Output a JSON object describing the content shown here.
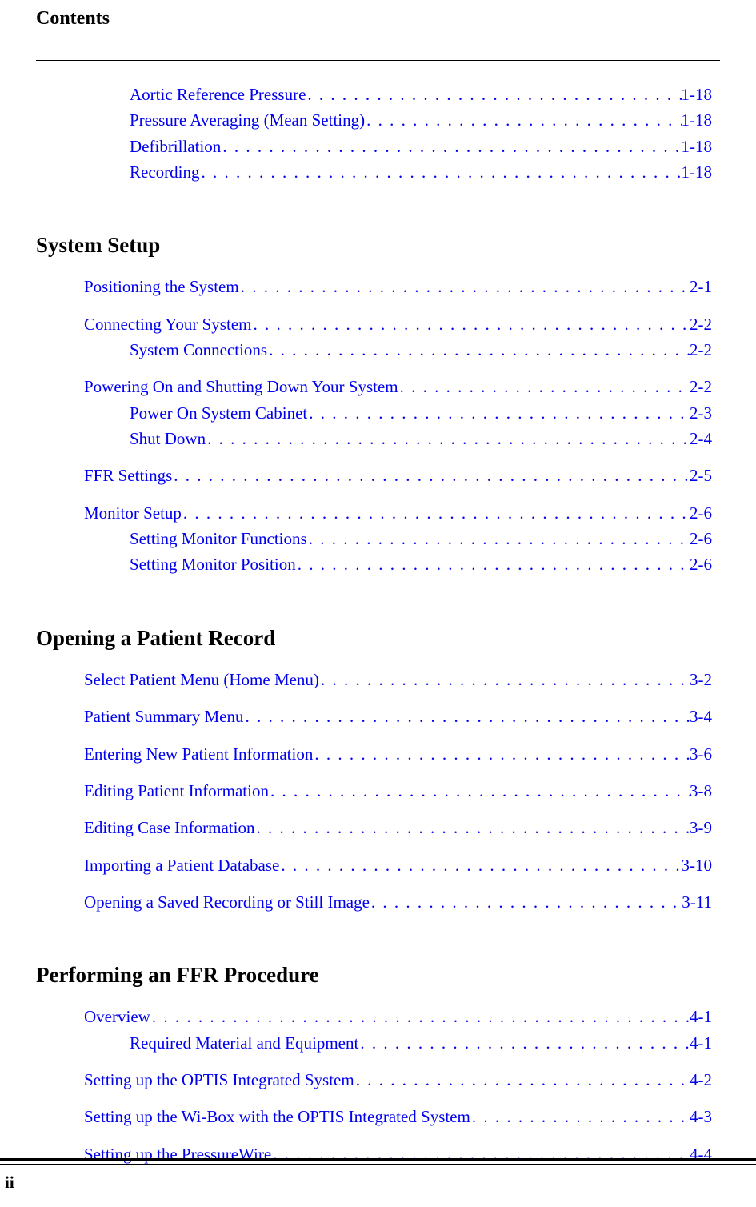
{
  "header": {
    "title": "Contents"
  },
  "colors": {
    "background": "#ffffff",
    "text": "#000000",
    "link": "#0000ee",
    "rule": "#000000"
  },
  "fonts": {
    "family": "Times New Roman",
    "header_size_pt": 18,
    "section_size_pt": 20,
    "entry_size_pt": 16
  },
  "toc": {
    "orphan_entries": [
      {
        "label": "Aortic Reference Pressure",
        "page": "1-18",
        "level": 1
      },
      {
        "label": "Pressure Averaging (Mean Setting)",
        "page": "1-18",
        "level": 1
      },
      {
        "label": "Defibrillation",
        "page": "1-18",
        "level": 1
      },
      {
        "label": "Recording",
        "page": "1-18",
        "level": 1
      }
    ],
    "sections": [
      {
        "heading": "System Setup",
        "groups": [
          [
            {
              "label": "Positioning the System",
              "page": "2-1",
              "level": 0
            }
          ],
          [
            {
              "label": "Connecting Your System",
              "page": "2-2",
              "level": 0
            },
            {
              "label": "System Connections",
              "page": "2-2",
              "level": 1
            }
          ],
          [
            {
              "label": "Powering On and Shutting Down Your System",
              "page": "2-2",
              "level": 0
            },
            {
              "label": "Power On System Cabinet",
              "page": "2-3",
              "level": 1
            },
            {
              "label": "Shut Down",
              "page": "2-4",
              "level": 1
            }
          ],
          [
            {
              "label": "FFR Settings",
              "page": "2-5",
              "level": 0
            }
          ],
          [
            {
              "label": "Monitor Setup",
              "page": "2-6",
              "level": 0
            },
            {
              "label": "Setting Monitor Functions",
              "page": "2-6",
              "level": 1
            },
            {
              "label": "Setting Monitor Position",
              "page": "2-6",
              "level": 1
            }
          ]
        ]
      },
      {
        "heading": "Opening a Patient Record",
        "groups": [
          [
            {
              "label": "Select Patient Menu (Home Menu)",
              "page": "3-2",
              "level": 0
            }
          ],
          [
            {
              "label": "Patient Summary Menu",
              "page": "3-4",
              "level": 0
            }
          ],
          [
            {
              "label": "Entering New Patient Information",
              "page": "3-6",
              "level": 0
            }
          ],
          [
            {
              "label": "Editing Patient Information",
              "page": "3-8",
              "level": 0
            }
          ],
          [
            {
              "label": "Editing Case Information",
              "page": "3-9",
              "level": 0
            }
          ],
          [
            {
              "label": "Importing a Patient Database",
              "page": "3-10",
              "level": 0
            }
          ],
          [
            {
              "label": "Opening a Saved Recording or Still Image",
              "page": "3-11",
              "level": 0
            }
          ]
        ]
      },
      {
        "heading": "Performing an FFR Procedure",
        "groups": [
          [
            {
              "label": "Overview",
              "page": "4-1",
              "level": 0
            },
            {
              "label": "Required Material and Equipment",
              "page": "4-1",
              "level": 1
            }
          ],
          [
            {
              "label": "Setting up the OPTIS Integrated System",
              "page": "4-2",
              "level": 0
            }
          ],
          [
            {
              "label": "Setting up the Wi-Box with the OPTIS Integrated System",
              "page": "4-3",
              "level": 0
            }
          ],
          [
            {
              "label": "Setting up the PressureWire",
              "page": "4-4",
              "level": 0
            }
          ]
        ]
      }
    ]
  },
  "footer": {
    "page_number": "ii"
  }
}
